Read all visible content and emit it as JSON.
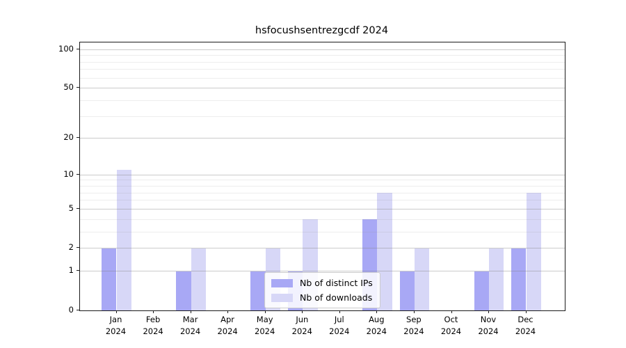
{
  "title": "hsfocushsentrezgcdf 2024",
  "chart_data": {
    "type": "bar",
    "title": "hsfocushsentrezgcdf 2024",
    "categories": [
      "Jan 2024",
      "Feb 2024",
      "Mar 2024",
      "Apr 2024",
      "May 2024",
      "Jun 2024",
      "Jul 2024",
      "Aug 2024",
      "Sep 2024",
      "Oct 2024",
      "Nov 2024",
      "Dec 2024"
    ],
    "month_labels": [
      "Jan",
      "Feb",
      "Mar",
      "Apr",
      "May",
      "Jun",
      "Jul",
      "Aug",
      "Sep",
      "Oct",
      "Nov",
      "Dec"
    ],
    "year_label": "2024",
    "series": [
      {
        "name": "Nb of distinct IPs",
        "color": "#a8a8f5",
        "values": [
          2,
          0,
          1,
          0,
          1,
          1,
          0,
          4,
          1,
          0,
          1,
          2
        ]
      },
      {
        "name": "Nb of downloads",
        "color": "#d7d7f7",
        "values": [
          11,
          0,
          2,
          0,
          2,
          4,
          0,
          7,
          2,
          0,
          2,
          7
        ]
      }
    ],
    "xlabel": "",
    "ylabel": "",
    "yscale": "log1p",
    "ylim": [
      0,
      113
    ],
    "yticks_major": [
      0,
      1,
      2,
      5,
      10,
      20,
      50,
      100
    ],
    "yticks_minor": [
      3,
      4,
      6,
      7,
      8,
      9,
      30,
      40,
      60,
      70,
      80,
      90
    ],
    "grid": true,
    "grid_above_bars": true,
    "legend_position": "lower center"
  },
  "colors": {
    "distinct_ips": "#a8a8f5",
    "downloads": "#d7d7f7",
    "spine": "#1a1a1a",
    "grid_major": "#cbcbcb",
    "grid_minor": "#ececec",
    "background": "#ffffff"
  }
}
